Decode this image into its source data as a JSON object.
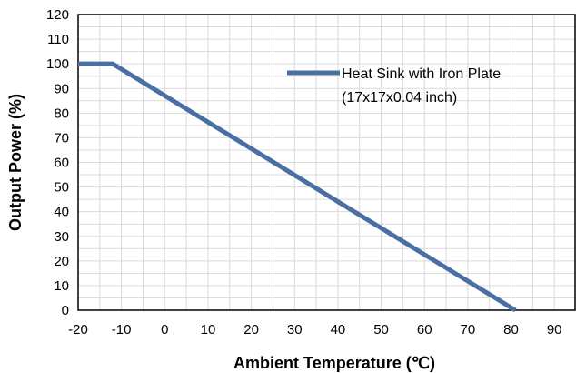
{
  "chart_data": {
    "type": "line",
    "title": "",
    "xlabel": "Ambient Temperature (℃)",
    "ylabel": "Output Power (%)",
    "xlim": [
      -20,
      95
    ],
    "ylim": [
      0,
      120
    ],
    "x_ticks": [
      -20,
      -10,
      0,
      10,
      20,
      30,
      40,
      50,
      60,
      70,
      80,
      90
    ],
    "y_ticks": [
      0,
      10,
      20,
      30,
      40,
      50,
      60,
      70,
      80,
      90,
      100,
      110,
      120
    ],
    "grid": true,
    "legend_position": "top-right",
    "series": [
      {
        "name": "Heat Sink with Iron Plate",
        "name_line2": "(17x17x0.04 inch)",
        "color": "#4a6fa5",
        "x": [
          -20,
          -12,
          81
        ],
        "y": [
          100,
          100,
          0
        ]
      }
    ]
  }
}
